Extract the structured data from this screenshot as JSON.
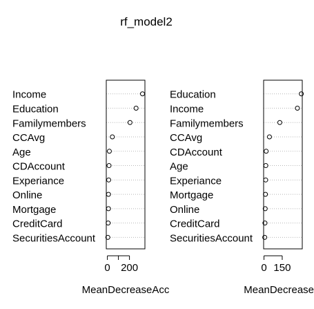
{
  "title": "rf_model2",
  "chart_data": [
    {
      "type": "scatter",
      "subtype": "dotchart",
      "title": "",
      "xlabel": "MeanDecreaseAcc",
      "ylabel": "",
      "xlim": [
        -10,
        340
      ],
      "xticks": [
        0,
        100,
        200
      ],
      "xtick_labels": [
        "0",
        "",
        "200"
      ],
      "grid": "dotted horizontal guide lines",
      "categories": [
        "Income",
        "Education",
        "Familymembers",
        "CCAvg",
        "Age",
        "CDAccount",
        "Experiance",
        "Online",
        "Mortgage",
        "CreditCard",
        "SecuritiesAccount"
      ],
      "values": [
        318,
        260,
        205,
        45,
        18,
        15,
        12,
        10,
        10,
        7,
        4
      ]
    },
    {
      "type": "scatter",
      "subtype": "dotchart",
      "title": "",
      "xlabel": "MeanDecreaseG",
      "ylabel": "",
      "xlim": [
        -3,
        315
      ],
      "xticks": [
        0,
        150
      ],
      "xtick_labels": [
        "0",
        "150"
      ],
      "grid": "dotted horizontal guide lines",
      "categories": [
        "Education",
        "Income",
        "Familymembers",
        "CCAvg",
        "CDAccount",
        "Age",
        "Experiance",
        "Mortgage",
        "Online",
        "CreditCard",
        "SecuritiesAccount"
      ],
      "values": [
        307,
        275,
        130,
        45,
        18,
        15,
        14,
        12,
        10,
        8,
        6
      ]
    }
  ]
}
